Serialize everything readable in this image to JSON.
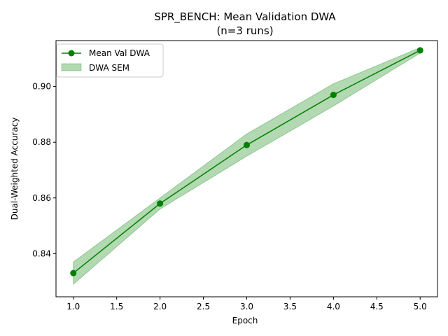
{
  "chart_data": {
    "type": "line",
    "title": "SPR_BENCH: Mean Validation DWA",
    "subtitle": "(n=3 runs)",
    "xlabel": "Epoch",
    "ylabel": "Dual-Weighted Accuracy",
    "xlim": [
      0.8,
      5.2
    ],
    "ylim": [
      0.8245,
      0.9165
    ],
    "xticks": [
      1.0,
      1.5,
      2.0,
      2.5,
      3.0,
      3.5,
      4.0,
      4.5,
      5.0
    ],
    "xtick_labels": [
      "1.0",
      "1.5",
      "2.0",
      "2.5",
      "3.0",
      "3.5",
      "4.0",
      "4.5",
      "5.0"
    ],
    "yticks": [
      0.84,
      0.86,
      0.88,
      0.9
    ],
    "ytick_labels": [
      "0.84",
      "0.86",
      "0.88",
      "0.90"
    ],
    "grid": false,
    "legend_position": "upper-left",
    "x": [
      1,
      2,
      3,
      4,
      5
    ],
    "series": [
      {
        "name": "Mean Val DWA",
        "kind": "line-marker",
        "color": "#008000",
        "values": [
          0.833,
          0.858,
          0.879,
          0.897,
          0.913
        ]
      },
      {
        "name": "DWA SEM",
        "kind": "band",
        "color": "#008000",
        "alpha": 0.3,
        "lower": [
          0.829,
          0.856,
          0.875,
          0.893,
          0.912
        ],
        "upper": [
          0.837,
          0.86,
          0.883,
          0.901,
          0.914
        ]
      }
    ]
  }
}
